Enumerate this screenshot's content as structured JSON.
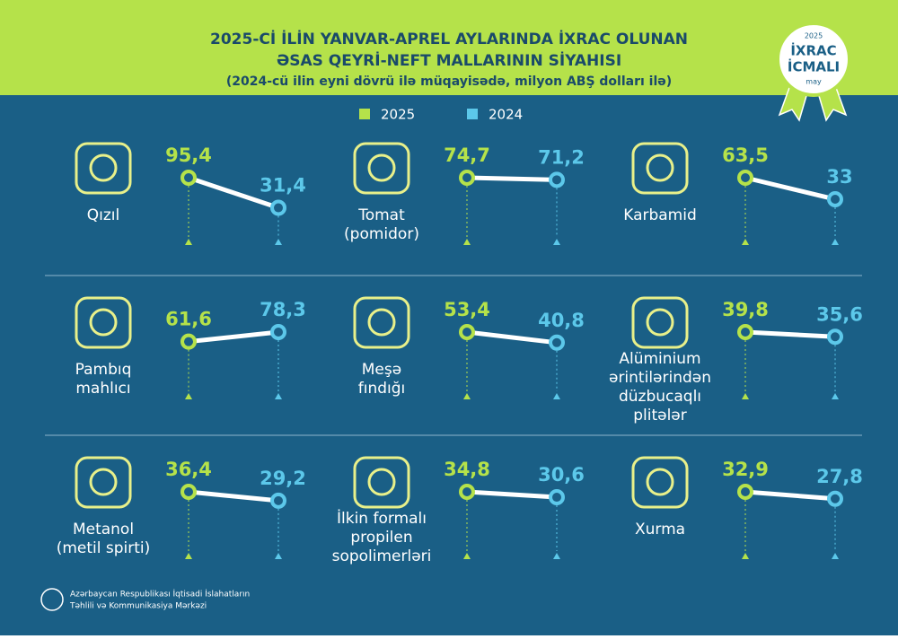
{
  "header": {
    "title": [
      "2025-Cİ İLİN YANVAR-APREL AYLARINDA İXRAC OLUNAN",
      "ƏSAS QEYRİ-NEFT MALLARININ SİYAHISI",
      "(2024-cü ilin eyni dövrü ilə müqayisədə, milyon ABŞ dolları ilə)"
    ]
  },
  "badge": {
    "year": "2025",
    "line1": "İXRAC",
    "line2": "İCMALI",
    "month": "may"
  },
  "legend": [
    {
      "name": "2025",
      "color": "#b5e24a"
    },
    {
      "name": "2024",
      "color": "#5cc8ea"
    }
  ],
  "items": [
    {
      "name": [
        "Qızıl"
      ],
      "values": [
        95.4,
        31.4
      ],
      "value_labels": [
        "95,4",
        "31,4"
      ]
    },
    {
      "name": [
        "Tomat",
        "(pomidor)"
      ],
      "values": [
        74.7,
        71.2
      ],
      "value_labels": [
        "74,7",
        "71,2"
      ]
    },
    {
      "name": [
        "Karbamid"
      ],
      "values": [
        63.5,
        33
      ],
      "value_labels": [
        "63,5",
        "33"
      ]
    },
    {
      "name": [
        "Pambıq",
        "mahlıcı"
      ],
      "values": [
        61.6,
        78.3
      ],
      "value_labels": [
        "61,6",
        "78,3"
      ]
    },
    {
      "name": [
        "Meşə",
        "fındığı"
      ],
      "values": [
        53.4,
        40.8
      ],
      "value_labels": [
        "53,4",
        "40,8"
      ]
    },
    {
      "name": [
        "Alüminium",
        "ərintilərindən",
        "düzbucaqlı",
        "plitələr"
      ],
      "values": [
        39.8,
        35.6
      ],
      "value_labels": [
        "39,8",
        "35,6"
      ]
    },
    {
      "name": [
        "Metanol",
        "(metil spirti)"
      ],
      "values": [
        36.4,
        29.2
      ],
      "value_labels": [
        "36,4",
        "29,2"
      ]
    },
    {
      "name": [
        "İlkin formalı",
        "propilen",
        "sopolimerləri"
      ],
      "values": [
        34.8,
        30.6
      ],
      "value_labels": [
        "34,8",
        "30,6"
      ]
    },
    {
      "name": [
        "Xurma"
      ],
      "values": [
        32.9,
        27.8
      ],
      "value_labels": [
        "32,9",
        "27,8"
      ]
    }
  ],
  "footer": [
    "Azərbaycan Respublikası İqtisadi İslahatların",
    "Təhlili və Kommunikasiya Mərkəzi"
  ]
}
